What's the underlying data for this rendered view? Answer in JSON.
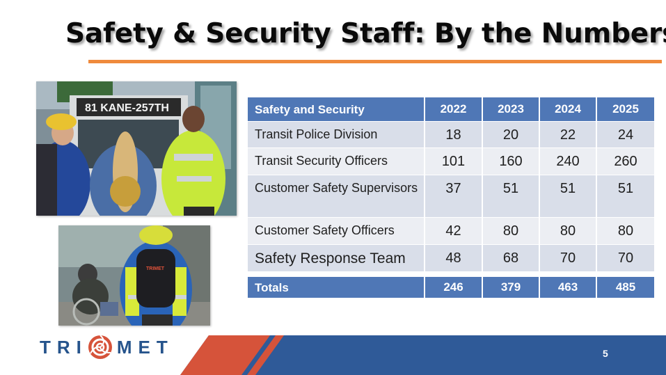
{
  "slide": {
    "title": "Safety & Security Staff: By the Numbers",
    "page_number": "5"
  },
  "photo_bus": {
    "destination_sign": "81 KANE-257TH"
  },
  "photo_backpack": {
    "backpack_logo": "TRIMET"
  },
  "table": {
    "header": {
      "label": "Safety and Security",
      "years": [
        "2022",
        "2023",
        "2024",
        "2025"
      ]
    },
    "rows": [
      {
        "label": "Transit Police Division",
        "values": [
          "18",
          "20",
          "22",
          "24"
        ]
      },
      {
        "label": "Transit Security Officers",
        "values": [
          "101",
          "160",
          "240",
          "260"
        ]
      },
      {
        "label": "Customer Safety Supervisors",
        "values": [
          "37",
          "51",
          "51",
          "51"
        ]
      },
      {
        "label": "Customer Safety Officers",
        "values": [
          "42",
          "80",
          "80",
          "80"
        ]
      },
      {
        "label": "Safety Response Team",
        "values": [
          "48",
          "68",
          "70",
          "70"
        ]
      }
    ],
    "totals": {
      "label": "Totals",
      "values": [
        "246",
        "379",
        "463",
        "485"
      ]
    }
  },
  "logo": {
    "left_text": "TRI",
    "right_text": "MET"
  },
  "colors": {
    "accent_orange": "#ef8a3c",
    "table_blue": "#4f77b6",
    "brand_navy": "#26548c",
    "footer_red": "#d6533a"
  }
}
